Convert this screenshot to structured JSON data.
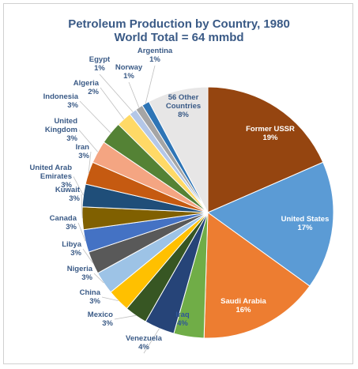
{
  "chart_data": {
    "type": "pie",
    "title": "Petroleum Production by Country, 1980",
    "subtitle": "World Total = 64 mmbd",
    "unit": "%",
    "slices": [
      {
        "label": "Former USSR",
        "value": 19,
        "color": "#954510"
      },
      {
        "label": "United States",
        "value": 17,
        "color": "#5b9bd5"
      },
      {
        "label": "Saudi Arabia",
        "value": 16,
        "color": "#ed7d31"
      },
      {
        "label": "Iraq",
        "value": 4,
        "color": "#70ad47"
      },
      {
        "label": "Venezuela",
        "value": 4,
        "color": "#264478"
      },
      {
        "label": "Mexico",
        "value": 3,
        "color": "#375623"
      },
      {
        "label": "China",
        "value": 3,
        "color": "#ffc000"
      },
      {
        "label": "Nigeria",
        "value": 3,
        "color": "#9dc3e6"
      },
      {
        "label": "Libya",
        "value": 3,
        "color": "#595959"
      },
      {
        "label": "Canada",
        "value": 3,
        "color": "#4472c4"
      },
      {
        "label": "Kuwait",
        "value": 3,
        "color": "#806000"
      },
      {
        "label": "United Arab Emirates",
        "value": 3,
        "color": "#1f4e79"
      },
      {
        "label": "Iran",
        "value": 3,
        "color": "#c55a11"
      },
      {
        "label": "United Kingdom",
        "value": 3,
        "color": "#f4a582"
      },
      {
        "label": "Indonesia",
        "value": 3,
        "color": "#548235"
      },
      {
        "label": "Algeria",
        "value": 2,
        "color": "#ffd966"
      },
      {
        "label": "Egypt",
        "value": 1,
        "color": "#b4c7e7"
      },
      {
        "label": "Norway",
        "value": 1,
        "color": "#a5a5a5"
      },
      {
        "label": "Argentina",
        "value": 1,
        "color": "#2e75b6"
      },
      {
        "label": "56 Other Countries",
        "value": 8,
        "color": "#e7e6e6"
      }
    ]
  }
}
